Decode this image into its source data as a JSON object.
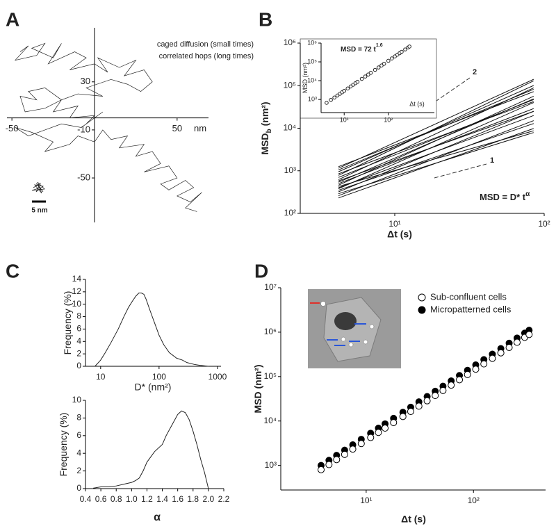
{
  "chart_data": [
    {
      "type": "line",
      "panel": "A",
      "annotations": [
        "caged diffusion (small times)",
        "correlated hops (long times)",
        "5 nm"
      ],
      "xlabel": "nm",
      "color": "#222222",
      "x": [
        -45,
        -40,
        -48,
        -35,
        -30,
        -38,
        -25,
        -20,
        -28,
        -12,
        -5,
        -15,
        0,
        8,
        2,
        15,
        25,
        18,
        30,
        35,
        28,
        20,
        10,
        -5,
        5,
        -10,
        -20,
        -30,
        -40,
        -35,
        -45,
        -42,
        -30,
        -20,
        -25,
        -10,
        -15,
        0,
        -5,
        5,
        -8,
        -20,
        -30,
        -40,
        -48,
        -38,
        -25,
        -30,
        -15,
        -10,
        0,
        5,
        10,
        20,
        15,
        30,
        25,
        35,
        40,
        30,
        45,
        50,
        40,
        45,
        55,
        60,
        50,
        58,
        65,
        55,
        62
      ],
      "values": [
        55,
        60,
        48,
        52,
        62,
        58,
        50,
        62,
        45,
        55,
        50,
        40,
        45,
        38,
        50,
        42,
        48,
        35,
        40,
        30,
        22,
        28,
        32,
        25,
        18,
        20,
        15,
        25,
        22,
        15,
        18,
        5,
        8,
        15,
        5,
        10,
        0,
        2,
        -5,
        5,
        -8,
        -5,
        -10,
        -15,
        -8,
        -12,
        -20,
        -28,
        -22,
        -15,
        -20,
        -10,
        -18,
        -15,
        -25,
        -22,
        -32,
        -28,
        -38,
        -45,
        -40,
        -50,
        -55,
        -60,
        -52,
        -58,
        -65,
        -70,
        -62,
        -75,
        -78
      ],
      "xlim": [
        -53,
        69
      ],
      "ylim": [
        -87,
        75
      ],
      "xticks": [
        -50,
        50
      ],
      "yticks": [
        30,
        -10,
        -50
      ]
    },
    {
      "type": "line",
      "panel": "B",
      "ylabel": "MSD",
      "ylabel_sub": "b",
      "ylabel_unit": "(nm²)",
      "xlabel": "Δt (s)",
      "annotation": "MSD = D* t",
      "annotation_sup": "α",
      "slope_labels": [
        2,
        1
      ],
      "xlog": true,
      "ylog": true,
      "color": "#111111",
      "xlim": [
        2.33,
        100
      ],
      "ylim": [
        100,
        1000000
      ],
      "xticks": [
        {
          "value": 10,
          "label": "10¹"
        },
        {
          "value": 100,
          "label": "10²"
        }
      ],
      "yticks": [
        {
          "value": 100,
          "label": "10²"
        },
        {
          "value": 1000,
          "label": "10³"
        },
        {
          "value": 10000,
          "label": "10⁴"
        },
        {
          "value": 100000,
          "label": "10⁵"
        },
        {
          "value": 1000000,
          "label": "10⁶"
        }
      ],
      "x": [
        4.2,
        10,
        25,
        85
      ],
      "series": [
        {
          "values": [
            230,
            680,
            2140,
            9870
          ]
        },
        {
          "values": [
            260,
            840,
            2890,
            15100
          ]
        },
        {
          "values": [
            290,
            754,
            2070,
            7920
          ]
        },
        {
          "values": [
            320,
            1130,
            4260,
            25000
          ]
        },
        {
          "values": [
            350,
            990,
            2980,
            12900
          ]
        },
        {
          "values": [
            380,
            1460,
            6040,
            40200
          ]
        },
        {
          "values": [
            400,
            1240,
            4070,
            19900
          ]
        },
        {
          "values": [
            430,
            1020,
            2560,
            8700
          ]
        },
        {
          "values": [
            460,
            1840,
            8000,
            56500
          ]
        },
        {
          "values": [
            500,
            1620,
            5560,
            29000
          ]
        },
        {
          "values": [
            540,
            1990,
            7850,
            49100
          ]
        },
        {
          "values": [
            580,
            1720,
            5400,
            24900
          ]
        },
        {
          "values": [
            620,
            2600,
            11800,
            88600
          ]
        },
        {
          "values": [
            700,
            2360,
            8500,
            47100
          ]
        },
        {
          "values": [
            780,
            3410,
            16200,
            130000
          ]
        },
        {
          "values": [
            850,
            2630,
            8650,
            42400
          ]
        },
        {
          "values": [
            950,
            3650,
            15100,
            101000
          ]
        },
        {
          "values": [
            1050,
            3700,
            14000,
            82200
          ]
        },
        {
          "values": [
            1150,
            4610,
            20000,
            141000
          ]
        },
        {
          "values": [
            1250,
            4040,
            13900,
            72500
          ]
        }
      ]
    },
    {
      "type": "scatter",
      "marker": "open",
      "color": "#222222",
      "ylabel": "MSD (nm²)",
      "xlabel": "Δt (s)",
      "annotation": "MSD = 72 t",
      "annotation_sup": "1.6",
      "xlog": true,
      "ylog": true,
      "xlim": [
        3,
        1100
      ],
      "ylim": [
        200,
        1000000
      ],
      "xticks": [
        {
          "value": 10,
          "label": "10¹"
        },
        {
          "value": 100,
          "label": "10²"
        }
      ],
      "yticks": [
        {
          "value": 1000,
          "label": "10³"
        },
        {
          "value": 10000,
          "label": "10⁴"
        },
        {
          "value": 100000,
          "label": "10⁵"
        },
        {
          "value": 1000000,
          "label": "10⁶"
        }
      ],
      "x": [
        4,
        5,
        6,
        7,
        8,
        9,
        10,
        12,
        14,
        16,
        18,
        20,
        25,
        30,
        35,
        40,
        50,
        60,
        70,
        80,
        100,
        120,
        140,
        160,
        180,
        200,
        240,
        280,
        300
      ],
      "values": [
        662,
        945,
        1266,
        1621,
        2006,
        2421,
        2866,
        3838,
        4904,
        6079,
        7339,
        8691,
        12420,
        16620,
        21250,
        26270,
        37630,
        50360,
        64370,
        79510,
        114100,
        152600,
        195000,
        241200,
        290900,
        343800,
        459300,
        586900,
        656400
      ]
    },
    {
      "type": "line",
      "panel": "C",
      "ylabel": "Frequency (%)",
      "xlabel": "D* (nm²)",
      "xlog": true,
      "color": "#222222",
      "xlim": [
        5.5,
        1150
      ],
      "ylim": [
        0,
        14
      ],
      "xticks": [
        10,
        100,
        1000
      ],
      "yticks": [
        0,
        2,
        4,
        6,
        8,
        10,
        12,
        14
      ],
      "x": [
        8,
        10,
        12,
        15,
        20,
        25,
        30,
        35,
        40,
        45,
        50,
        55,
        60,
        70,
        80,
        90,
        100,
        120,
        150,
        200,
        250,
        300,
        400,
        500,
        700
      ],
      "values": [
        0,
        1.0,
        2.2,
        3.8,
        6.0,
        8.0,
        9.5,
        10.5,
        11.3,
        11.8,
        11.8,
        11.6,
        10.8,
        9.0,
        7.5,
        6.2,
        5.0,
        3.5,
        2.2,
        1.3,
        1.0,
        0.6,
        0.3,
        0.15,
        0
      ]
    },
    {
      "type": "line",
      "ylabel": "Frequency (%)",
      "xlabel": "α",
      "color": "#222222",
      "xlim": [
        0.4,
        2.2
      ],
      "ylim": [
        0,
        10
      ],
      "xticks": [
        0.4,
        0.6,
        0.8,
        {
          "value": 1,
          "label": "1.0"
        },
        1.2,
        1.4,
        1.6,
        1.8,
        {
          "value": 2,
          "label": "2.0"
        },
        2.2
      ],
      "yticks": [
        0,
        2,
        4,
        6,
        8,
        10
      ],
      "x": [
        0.5,
        0.6,
        0.7,
        0.8,
        0.9,
        1.0,
        1.05,
        1.1,
        1.15,
        1.2,
        1.3,
        1.4,
        1.45,
        1.5,
        1.55,
        1.6,
        1.65,
        1.7,
        1.75,
        1.8,
        1.85,
        1.9,
        1.95,
        2.0
      ],
      "values": [
        0.05,
        0.2,
        0.2,
        0.3,
        0.5,
        0.7,
        0.9,
        1.2,
        2.0,
        3.0,
        4.2,
        5.0,
        6.0,
        6.8,
        7.6,
        8.4,
        8.8,
        8.6,
        7.8,
        6.5,
        5.0,
        3.3,
        1.8,
        0
      ]
    },
    {
      "type": "scatter",
      "panel": "D",
      "ylabel": "MSD (nm²)",
      "xlabel": "Δt (s)",
      "legend": "upper right",
      "xlog": true,
      "ylog": true,
      "xlim": [
        1.6,
        470
      ],
      "ylim": [
        280,
        10000000
      ],
      "xticks": [
        {
          "value": 10,
          "label": "10¹"
        },
        {
          "value": 100,
          "label": "10²"
        }
      ],
      "yticks": [
        {
          "value": 1000,
          "label": "10³"
        },
        {
          "value": 10000,
          "label": "10⁴"
        },
        {
          "value": 100000,
          "label": "10⁵"
        },
        {
          "value": 1000000,
          "label": "10⁶"
        },
        {
          "value": 10000000,
          "label": "10⁷"
        }
      ],
      "x": [
        3.8,
        4.5,
        5.3,
        6.3,
        7.5,
        9,
        11,
        13,
        15,
        18,
        22,
        26,
        31,
        37,
        44,
        52,
        62,
        74,
        88,
        105,
        125,
        150,
        180,
        215,
        255,
        300,
        330
      ],
      "series": [
        {
          "name": "Micropatterned cells",
          "marker": "filled",
          "color": "#000000",
          "values": [
            1000,
            1304,
            1686,
            2211,
            2908,
            3873,
            5305,
            6899,
            8636,
            11500,
            15750,
            20480,
            27000,
            35630,
            46770,
            60780,
            80150,
            105800,
            138900,
            183200,
            240900,
            320800,
            427100,
            564600,
            738200,
            952400,
            1106000
          ]
        },
        {
          "name": "Sub-confluent cells",
          "marker": "open",
          "color": "#000000",
          "values": [
            800,
            1043,
            1349,
            1769,
            2326,
            3098,
            4244,
            5519,
            6909,
            9200,
            12600,
            16380,
            21600,
            28500,
            37410,
            48620,
            64120,
            84640,
            111100,
            146600,
            192700,
            256600,
            341700,
            451700,
            590600,
            761900,
            884800
          ]
        }
      ]
    }
  ]
}
